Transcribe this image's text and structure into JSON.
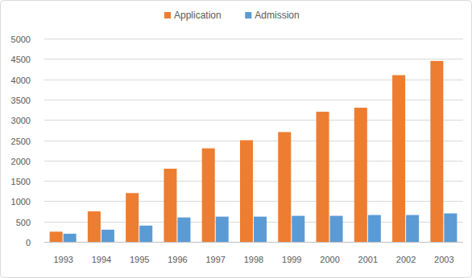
{
  "chart_data": {
    "type": "bar",
    "categories": [
      "1993",
      "1994",
      "1995",
      "1996",
      "1997",
      "1998",
      "1999",
      "2000",
      "2001",
      "2002",
      "2003"
    ],
    "series": [
      {
        "name": "Application",
        "color": "#ed7d31",
        "values": [
          250,
          750,
          1200,
          1800,
          2300,
          2500,
          2700,
          3200,
          3300,
          4100,
          4450
        ]
      },
      {
        "name": "Admission",
        "color": "#5b9bd5",
        "values": [
          200,
          300,
          400,
          600,
          620,
          620,
          640,
          640,
          660,
          660,
          700
        ]
      }
    ],
    "ylim": [
      0,
      5000
    ],
    "yticks": [
      0,
      500,
      1000,
      1500,
      2000,
      2500,
      3000,
      3500,
      4000,
      4500,
      5000
    ],
    "grid": true,
    "legend": "top"
  }
}
